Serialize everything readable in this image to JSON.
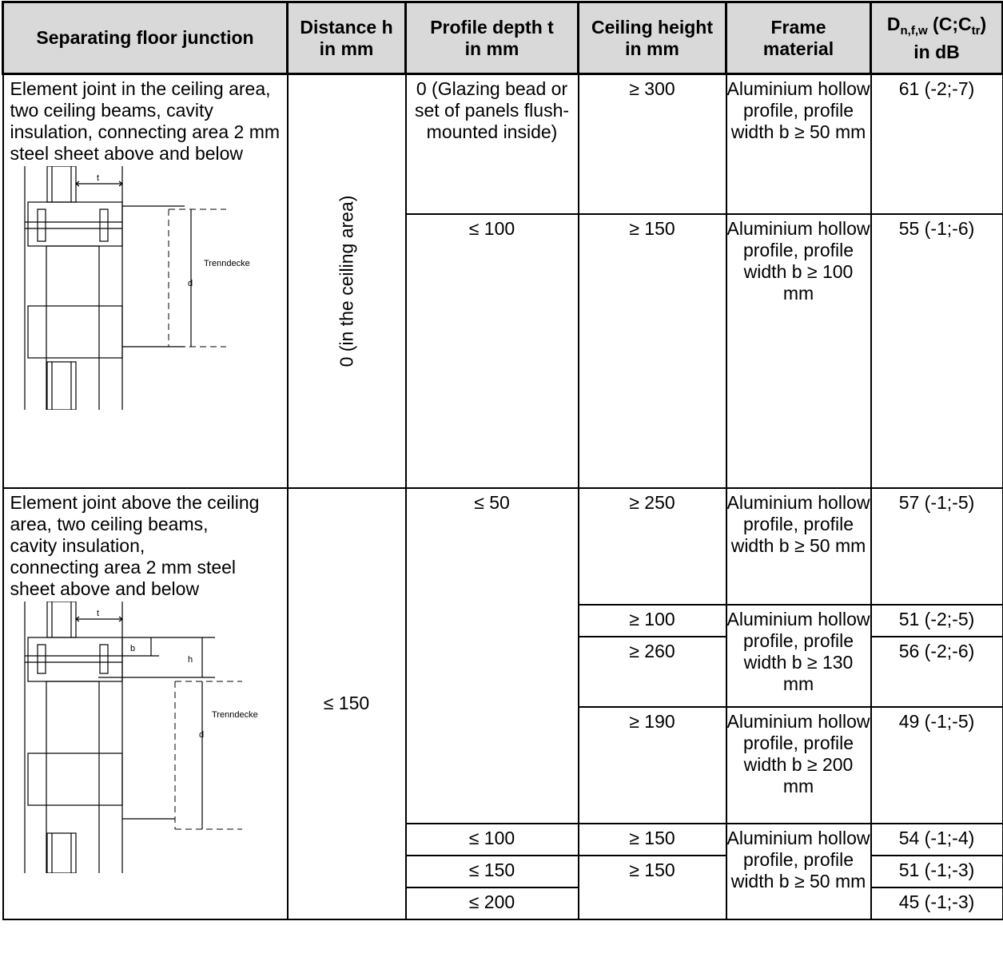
{
  "headers": {
    "junction": "Separating floor junction",
    "distance_1": "Distance h",
    "distance_2": "in mm",
    "profile_1": "Profile depth t",
    "profile_2": "in mm",
    "ceiling_1": "Ceiling height",
    "ceiling_2": "in mm",
    "frame_1": "Frame",
    "frame_2": "material",
    "d_main": "D",
    "d_sub": "n,f,w",
    "d_mid": " (C;C",
    "d_sub2": "tr",
    "d_end": ")",
    "d_2": "in dB"
  },
  "section1": {
    "description": "Element joint in the ceiling area, two ceiling beams, cavity insulation, connecting area 2 mm steel sheet above and below",
    "distance": "0 (in the ceiling area)",
    "drawing_labels": {
      "t": "t",
      "d": "d",
      "floor": "Trenndecke"
    },
    "rows": [
      {
        "profile": "0 (Glazing bead or set of panels flush-mounted inside)",
        "ceiling": "≥ 300",
        "frame": "Aluminium hollow profile, profile width b ≥ 50 mm",
        "value": "61 (-2;-7)"
      },
      {
        "profile": "≤ 100",
        "ceiling": "≥ 150",
        "frame": "Aluminium hollow profile, profile width b ≥ 100 mm",
        "value": "55 (-1;-6)"
      }
    ]
  },
  "section2": {
    "description": "Element joint above the ceiling area, two ceiling beams,\ncavity insulation,\nconnecting area 2 mm steel sheet above and below",
    "distance": "≤ 150",
    "drawing_labels": {
      "t": "t",
      "b": "b",
      "h": "h",
      "d": "d",
      "floor": "Trenndecke"
    },
    "profile_a": "≤ 50",
    "rows": [
      {
        "ceiling": "≥ 250",
        "frame": "Aluminium hollow profile, profile width b ≥ 50 mm",
        "value": "57 (-1;-5)"
      },
      {
        "ceiling": "≥ 100",
        "value": "51 (-2;-5)"
      },
      {
        "ceiling": "≥ 260",
        "value": "56 (-2;-6)"
      },
      {
        "ceiling": "≥ 190",
        "frame": "Aluminium hollow profile, profile width b ≥ 200 mm",
        "value": "49 (-1;-5)"
      },
      {
        "profile": "≤ 100",
        "ceiling": "≥ 150",
        "value": "54 (-1;-4)"
      },
      {
        "profile": "≤ 150",
        "ceiling": "≥ 150",
        "value": "51 (-1;-3)"
      },
      {
        "profile": "≤ 200",
        "value": "45 (-1;-3)"
      }
    ],
    "frame_130": "Aluminium hollow profile, profile width b ≥ 130 mm",
    "frame_50b": "Aluminium hollow profile, profile width b ≥ 50 mm"
  }
}
